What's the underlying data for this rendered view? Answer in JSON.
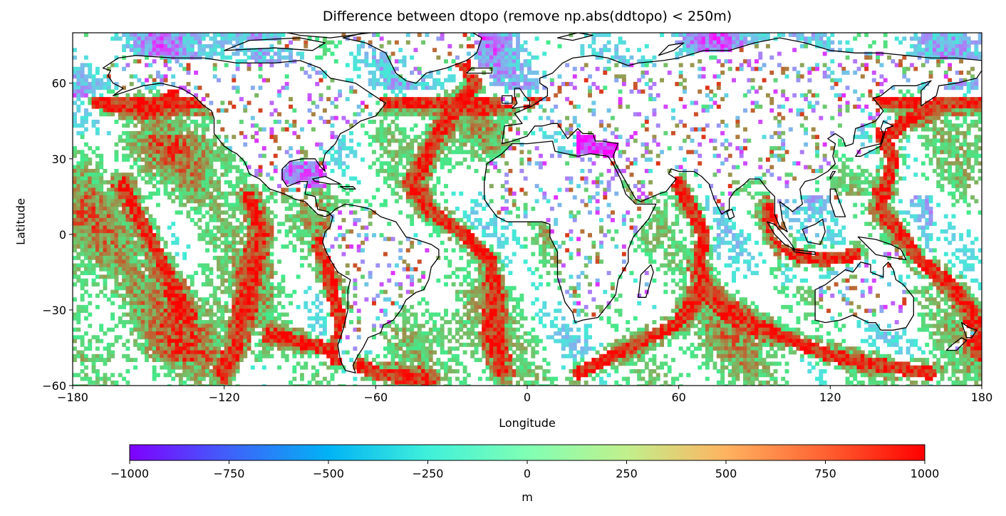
{
  "chart_data": {
    "type": "heatmap",
    "title": "Difference between dtopo (remove np.abs(ddtopo) < 250m)",
    "xlabel": "Longitude",
    "ylabel": "Latitude",
    "xlim": [
      -180,
      180
    ],
    "ylim": [
      -60,
      80
    ],
    "x_ticks": [
      -180,
      -120,
      -60,
      0,
      60,
      120,
      180
    ],
    "x_tick_labels": [
      "−180",
      "−120",
      "−60",
      "0",
      "60",
      "120",
      "180"
    ],
    "y_ticks": [
      -60,
      -30,
      0,
      30,
      60
    ],
    "y_tick_labels": [
      "−60",
      "−30",
      "0",
      "30",
      "60"
    ],
    "masked_range": [
      -250,
      250
    ],
    "colormap": "rainbow",
    "colorbar": {
      "label": "m",
      "range": [
        -1000,
        1000
      ],
      "ticks": [
        -1000,
        -750,
        -500,
        -250,
        0,
        250,
        500,
        750,
        1000
      ],
      "tick_labels": [
        "−1000",
        "−750",
        "−500",
        "−250",
        "0",
        "250",
        "500",
        "750",
        "1000"
      ],
      "colors": [
        "#7f00ff",
        "#3f61fa",
        "#01b3f5",
        "#3ff0da",
        "#80ffb4",
        "#c1f08c",
        "#ffb360",
        "#ff6131",
        "#ff0000"
      ]
    },
    "coastline_color": "#000000"
  }
}
